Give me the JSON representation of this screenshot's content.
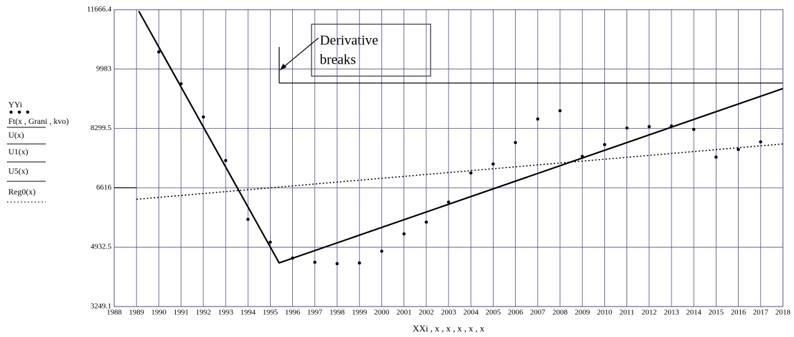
{
  "chart_data": {
    "type": "line",
    "x_label": "XXi , x , x , x , x , x",
    "xlim": [
      1988,
      2018
    ],
    "xticks": [
      1988,
      1989,
      1990,
      1991,
      1992,
      1993,
      1994,
      1995,
      1996,
      1997,
      1998,
      1999,
      2000,
      2001,
      2002,
      2003,
      2004,
      2005,
      2006,
      2007,
      2008,
      2009,
      2010,
      2011,
      2012,
      2013,
      2014,
      2015,
      2016,
      2017,
      2018
    ],
    "ylim": [
      3249.1,
      11666.4
    ],
    "yticks": [
      3249.1,
      4932.5,
      6616,
      8299.5,
      9983,
      11666.4
    ],
    "grid": true,
    "series": [
      {
        "name": "YYi",
        "style": "points",
        "color": "#000000",
        "x": [
          1990,
          1991,
          1992,
          1993,
          1994,
          1995,
          1996,
          1997,
          1998,
          1999,
          2000,
          2001,
          2002,
          2003,
          2004,
          2005,
          2006,
          2007,
          2008,
          2009,
          2010,
          2011,
          2012,
          2013,
          2014,
          2015,
          2016,
          2017
        ],
        "values": [
          10470,
          9567,
          8625,
          7389,
          5722,
          5074,
          4623,
          4505,
          4466,
          4486,
          4819,
          5310,
          5643,
          6212,
          7036,
          7291,
          7899,
          8567,
          8802,
          7507,
          7841,
          8311,
          8351,
          8370,
          8272,
          7487,
          7703,
          7919
        ]
      },
      {
        "name": "Ft(x , Grani , kvo)",
        "style": "solid",
        "color": "#000000",
        "x": [
          1989.1,
          1995.4,
          2018
        ],
        "values": [
          11627,
          4486,
          9430
        ]
      },
      {
        "name": "U(x)",
        "style": "thin",
        "color": "#000000",
        "x": [
          1995.4,
          2018
        ],
        "values": [
          9587,
          9587
        ]
      },
      {
        "name": "U1(x)",
        "style": "thin",
        "color": "#000000",
        "x": [
          1995.4,
          1995.4
        ],
        "values": [
          9587,
          10607
        ]
      },
      {
        "name": "U5(x)",
        "style": "thin",
        "color": "#000000",
        "x": [
          1988,
          1989
        ],
        "values": [
          6616,
          6616
        ]
      },
      {
        "name": "Reg0(x)",
        "style": "dotted",
        "color": "#000000",
        "x": [
          1989,
          2018
        ],
        "values": [
          6291,
          7860
        ]
      }
    ],
    "annotation": {
      "lines": [
        "Derivative",
        "breaks"
      ]
    }
  }
}
